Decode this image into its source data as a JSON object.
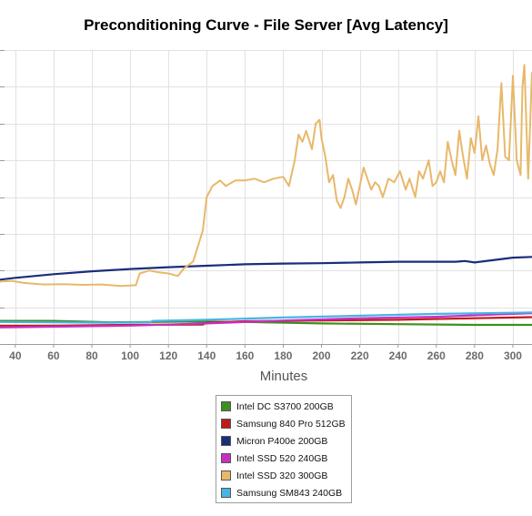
{
  "chart_data": {
    "type": "line",
    "title": "Preconditioning Curve - File Server [Avg Latency]",
    "xlabel": "Minutes",
    "ylabel": "",
    "xlim": [
      32,
      310
    ],
    "ylim": [
      0,
      8
    ],
    "y_gridlines": [
      1,
      2,
      3,
      4,
      5,
      6,
      7,
      8
    ],
    "x_ticks": [
      40,
      60,
      80,
      100,
      120,
      140,
      160,
      180,
      200,
      220,
      240,
      260,
      280,
      300
    ],
    "grid": true,
    "legend_position": "bottom-center",
    "series": [
      {
        "name": "Intel DC S3700 200GB",
        "color": "#3f8f1f",
        "points": [
          [
            32,
            0.63
          ],
          [
            60,
            0.63
          ],
          [
            75,
            0.61
          ],
          [
            90,
            0.59
          ],
          [
            110,
            0.6
          ],
          [
            130,
            0.61
          ],
          [
            140,
            0.61
          ],
          [
            160,
            0.6
          ],
          [
            200,
            0.56
          ],
          [
            240,
            0.54
          ],
          [
            280,
            0.52
          ],
          [
            310,
            0.52
          ]
        ]
      },
      {
        "name": "Samsung 840 Pro 512GB",
        "color": "#bf1b1b",
        "points": [
          [
            32,
            0.5
          ],
          [
            60,
            0.5
          ],
          [
            100,
            0.52
          ],
          [
            138,
            0.53
          ],
          [
            140,
            0.58
          ],
          [
            160,
            0.62
          ],
          [
            200,
            0.64
          ],
          [
            240,
            0.66
          ],
          [
            280,
            0.7
          ],
          [
            300,
            0.72
          ],
          [
            310,
            0.73
          ]
        ]
      },
      {
        "name": "Micron P400e 200GB",
        "color": "#1b2d7a",
        "points": [
          [
            32,
            1.75
          ],
          [
            40,
            1.8
          ],
          [
            60,
            1.9
          ],
          [
            80,
            1.98
          ],
          [
            100,
            2.04
          ],
          [
            120,
            2.09
          ],
          [
            140,
            2.13
          ],
          [
            160,
            2.17
          ],
          [
            180,
            2.19
          ],
          [
            200,
            2.2
          ],
          [
            220,
            2.22
          ],
          [
            240,
            2.24
          ],
          [
            260,
            2.24
          ],
          [
            270,
            2.24
          ],
          [
            275,
            2.26
          ],
          [
            280,
            2.22
          ],
          [
            300,
            2.35
          ],
          [
            310,
            2.37
          ]
        ]
      },
      {
        "name": "Intel SSD 520 240GB",
        "color": "#c630c2",
        "points": [
          [
            32,
            0.45
          ],
          [
            60,
            0.47
          ],
          [
            100,
            0.5
          ],
          [
            140,
            0.56
          ],
          [
            180,
            0.64
          ],
          [
            220,
            0.7
          ],
          [
            260,
            0.74
          ],
          [
            290,
            0.8
          ],
          [
            310,
            0.84
          ]
        ]
      },
      {
        "name": "Intel SSD 320 300GB",
        "color": "#e8b86a",
        "points": [
          [
            32,
            1.7
          ],
          [
            38,
            1.72
          ],
          [
            45,
            1.66
          ],
          [
            55,
            1.62
          ],
          [
            65,
            1.63
          ],
          [
            75,
            1.61
          ],
          [
            85,
            1.62
          ],
          [
            95,
            1.58
          ],
          [
            103,
            1.6
          ],
          [
            105,
            1.92
          ],
          [
            110,
            2.0
          ],
          [
            115,
            1.95
          ],
          [
            120,
            1.92
          ],
          [
            125,
            1.85
          ],
          [
            128,
            2.05
          ],
          [
            133,
            2.25
          ],
          [
            136,
            2.75
          ],
          [
            138,
            3.1
          ],
          [
            140,
            4.0
          ],
          [
            143,
            4.3
          ],
          [
            147,
            4.45
          ],
          [
            150,
            4.3
          ],
          [
            155,
            4.45
          ],
          [
            160,
            4.45
          ],
          [
            165,
            4.5
          ],
          [
            170,
            4.4
          ],
          [
            175,
            4.5
          ],
          [
            180,
            4.55
          ],
          [
            183,
            4.3
          ],
          [
            186,
            5.0
          ],
          [
            188,
            5.7
          ],
          [
            190,
            5.5
          ],
          [
            192,
            5.8
          ],
          [
            195,
            5.3
          ],
          [
            197,
            6.0
          ],
          [
            199,
            6.1
          ],
          [
            200,
            5.6
          ],
          [
            202,
            5.1
          ],
          [
            204,
            4.4
          ],
          [
            206,
            4.6
          ],
          [
            208,
            3.9
          ],
          [
            210,
            3.7
          ],
          [
            212,
            4.0
          ],
          [
            214,
            4.5
          ],
          [
            216,
            4.2
          ],
          [
            218,
            3.8
          ],
          [
            220,
            4.3
          ],
          [
            222,
            4.8
          ],
          [
            224,
            4.5
          ],
          [
            226,
            4.2
          ],
          [
            228,
            4.4
          ],
          [
            230,
            4.3
          ],
          [
            232,
            4.0
          ],
          [
            235,
            4.5
          ],
          [
            238,
            4.4
          ],
          [
            241,
            4.7
          ],
          [
            244,
            4.2
          ],
          [
            246,
            4.5
          ],
          [
            249,
            4.0
          ],
          [
            251,
            4.7
          ],
          [
            253,
            4.5
          ],
          [
            256,
            5.0
          ],
          [
            258,
            4.3
          ],
          [
            260,
            4.4
          ],
          [
            262,
            4.7
          ],
          [
            264,
            4.4
          ],
          [
            266,
            5.5
          ],
          [
            268,
            5.0
          ],
          [
            270,
            4.6
          ],
          [
            272,
            5.8
          ],
          [
            274,
            5.1
          ],
          [
            276,
            4.5
          ],
          [
            278,
            5.6
          ],
          [
            280,
            5.2
          ],
          [
            282,
            6.2
          ],
          [
            284,
            5.0
          ],
          [
            286,
            5.4
          ],
          [
            288,
            4.9
          ],
          [
            290,
            4.6
          ],
          [
            292,
            5.3
          ],
          [
            294,
            7.1
          ],
          [
            296,
            5.1
          ],
          [
            298,
            5.0
          ],
          [
            300,
            7.3
          ],
          [
            302,
            5.0
          ],
          [
            304,
            4.6
          ],
          [
            305,
            7.0
          ],
          [
            306,
            7.6
          ],
          [
            308,
            4.5
          ],
          [
            310,
            7.4
          ]
        ]
      },
      {
        "name": "Samsung SM843 240GB",
        "color": "#47b4e6",
        "points": [
          [
            32,
            0.6
          ],
          [
            60,
            0.59
          ],
          [
            90,
            0.58
          ],
          [
            110,
            0.59
          ],
          [
            112,
            0.63
          ],
          [
            140,
            0.66
          ],
          [
            180,
            0.72
          ],
          [
            220,
            0.77
          ],
          [
            260,
            0.82
          ],
          [
            300,
            0.85
          ],
          [
            310,
            0.86
          ]
        ]
      }
    ]
  }
}
